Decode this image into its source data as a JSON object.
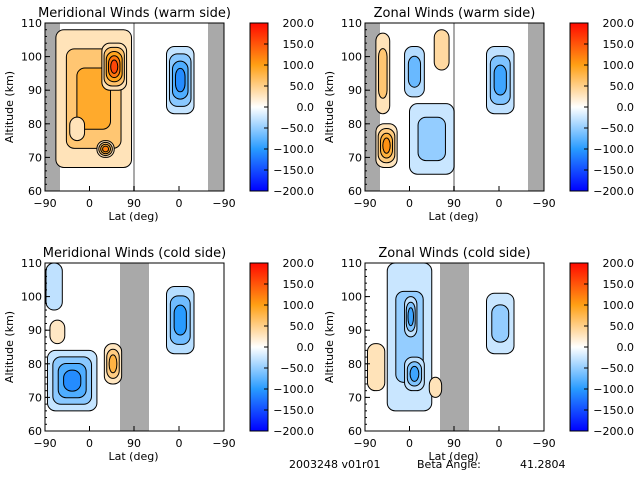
{
  "chart_data": [
    {
      "type": "heatmap",
      "title": "Meridional Winds (warm side)",
      "xlabel": "Lat (deg)",
      "ylabel": "Altitude (km)",
      "xticks": [
        "-90",
        "0",
        "90",
        "0",
        "-90"
      ],
      "yticks": [
        "60",
        "70",
        "80",
        "90",
        "100",
        "110"
      ],
      "ylim": [
        60,
        110
      ],
      "colorbar": {
        "min": -200,
        "max": 200,
        "ticks": [
          "200.0",
          "150.0",
          "100.0",
          "50.0",
          "0.0",
          "-50.0",
          "-100.0",
          "-150.0",
          "-200.0"
        ]
      },
      "no_data_bands": [
        [
          "-90",
          "-70"
        ],
        [
          "-70",
          "-90"
        ]
      ],
      "blobs": [
        {
          "lat_range": [
            -68,
            85
          ],
          "alt_range": [
            67,
            108
          ],
          "value": 90,
          "note": "ascending branch, broad positive"
        },
        {
          "lat_range": [
            25,
            75
          ],
          "alt_range": [
            90,
            104
          ],
          "value": 160,
          "note": "peak positive"
        },
        {
          "lat_range": [
            -40,
            -10
          ],
          "alt_range": [
            75,
            82
          ],
          "value": 30
        },
        {
          "lat_range": [
            15,
            50
          ],
          "alt_range": [
            70,
            75
          ],
          "value": 120
        },
        {
          "lat_range": [
            -30,
            25
          ],
          "alt_range": [
            83,
            103
          ],
          "value": -110,
          "branch": "descending",
          "note": "negative core"
        }
      ]
    },
    {
      "type": "heatmap",
      "title": "Zonal Winds (warm side)",
      "xlabel": "Lat (deg)",
      "ylabel": "Altitude (km)",
      "xticks": [
        "-90",
        "0",
        "90",
        "0",
        "-90"
      ],
      "yticks": [
        "60",
        "70",
        "80",
        "90",
        "100",
        "110"
      ],
      "ylim": [
        60,
        110
      ],
      "colorbar": {
        "min": -200,
        "max": 200,
        "ticks": [
          "200.0",
          "150.0",
          "100.0",
          "50.0",
          "0.0",
          "-50.0",
          "-100.0",
          "-150.0",
          "-200.0"
        ]
      },
      "blobs": [
        {
          "lat_range": [
            -68,
            -40
          ],
          "alt_range": [
            83,
            107
          ],
          "value": 60
        },
        {
          "lat_range": [
            -68,
            -25
          ],
          "alt_range": [
            67,
            80
          ],
          "value": 110
        },
        {
          "lat_range": [
            50,
            80
          ],
          "alt_range": [
            96,
            108
          ],
          "value": 40
        },
        {
          "lat_range": [
            -10,
            30
          ],
          "alt_range": [
            88,
            103
          ],
          "value": -70
        },
        {
          "lat_range": [
            0,
            90
          ],
          "alt_range": [
            65,
            86
          ],
          "value": -50
        },
        {
          "lat_range": [
            -30,
            25
          ],
          "alt_range": [
            83,
            103
          ],
          "value": -90,
          "branch": "descending"
        }
      ]
    },
    {
      "type": "heatmap",
      "title": "Meridional Winds (cold side)",
      "xlabel": "Lat (deg)",
      "ylabel": "Altitude (km)",
      "xticks": [
        "-90",
        "0",
        "90",
        "0",
        "-90"
      ],
      "yticks": [
        "60",
        "70",
        "80",
        "90",
        "100",
        "110"
      ],
      "ylim": [
        60,
        110
      ],
      "colorbar": {
        "min": -200,
        "max": 200,
        "ticks": [
          "200.0",
          "150.0",
          "100.0",
          "50.0",
          "0.0",
          "-50.0",
          "-100.0",
          "-150.0",
          "-200.0"
        ]
      },
      "no_data_bands": [
        [
          "65",
          "90"
        ],
        [
          "90",
          "120"
        ]
      ],
      "blobs": [
        {
          "lat_range": [
            -88,
            -55
          ],
          "alt_range": [
            96,
            110
          ],
          "value": -30
        },
        {
          "lat_range": [
            -85,
            15
          ],
          "alt_range": [
            66,
            84
          ],
          "value": -110
        },
        {
          "lat_range": [
            30,
            65
          ],
          "alt_range": [
            74,
            86
          ],
          "value": 80
        },
        {
          "lat_range": [
            -80,
            -50
          ],
          "alt_range": [
            86,
            93
          ],
          "value": 25
        },
        {
          "lat_range": [
            -30,
            25
          ],
          "alt_range": [
            83,
            103
          ],
          "value": -100,
          "branch": "descending"
        }
      ]
    },
    {
      "type": "heatmap",
      "title": "Zonal Winds (cold side)",
      "xlabel": "Lat (deg)",
      "ylabel": "Altitude (km)",
      "xticks": [
        "-90",
        "0",
        "90",
        "0",
        "-90"
      ],
      "yticks": [
        "60",
        "70",
        "80",
        "90",
        "100",
        "110"
      ],
      "ylim": [
        60,
        110
      ],
      "colorbar": {
        "min": -200,
        "max": 200,
        "ticks": [
          "200.0",
          "150.0",
          "100.0",
          "50.0",
          "0.0",
          "-50.0",
          "-100.0",
          "-150.0",
          "-200.0"
        ]
      },
      "no_data_bands": [
        [
          "65",
          "90"
        ],
        [
          "90",
          "120"
        ]
      ],
      "blobs": [
        {
          "lat_range": [
            -45,
            45
          ],
          "alt_range": [
            66,
            110
          ],
          "value": -50
        },
        {
          "lat_range": [
            -10,
            15
          ],
          "alt_range": [
            88,
            100
          ],
          "value": -90
        },
        {
          "lat_range": [
            -10,
            30
          ],
          "alt_range": [
            72,
            82
          ],
          "value": -90
        },
        {
          "lat_range": [
            -85,
            -50
          ],
          "alt_range": [
            72,
            86
          ],
          "value": 30
        },
        {
          "lat_range": [
            40,
            65
          ],
          "alt_range": [
            70,
            76
          ],
          "value": 30
        },
        {
          "lat_range": [
            -30,
            25
          ],
          "alt_range": [
            83,
            101
          ],
          "value": -50,
          "branch": "descending"
        }
      ]
    }
  ],
  "footer": {
    "id": "2003248 v01r01",
    "beta_label": "Beta Angle:",
    "beta_value": "41.2804"
  }
}
